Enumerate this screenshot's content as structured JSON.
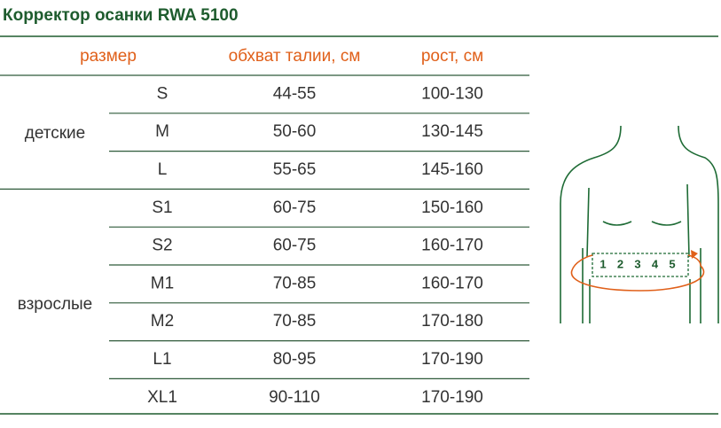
{
  "title": "Корректор осанки RWA 5100",
  "table": {
    "header": [
      "размер",
      "обхват талии, см",
      "рост, см"
    ],
    "groups": [
      {
        "label": "детские",
        "rows": [
          [
            "S",
            "44-55",
            "100-130"
          ],
          [
            "M",
            "50-60",
            "130-145"
          ],
          [
            "L",
            "55-65",
            "145-160"
          ]
        ]
      },
      {
        "label": "взрослые",
        "rows": [
          [
            "S1",
            "60-75",
            "150-160"
          ],
          [
            "S2",
            "60-75",
            "160-170"
          ],
          [
            "M1",
            "70-85",
            "160-170"
          ],
          [
            "M2",
            "70-85",
            "170-180"
          ],
          [
            "L1",
            "80-95",
            "170-190"
          ],
          [
            "XL1",
            "90-110",
            "170-190"
          ]
        ]
      }
    ]
  },
  "figure": {
    "belt_numbers": [
      "1",
      "2",
      "3",
      "4",
      "5"
    ]
  }
}
